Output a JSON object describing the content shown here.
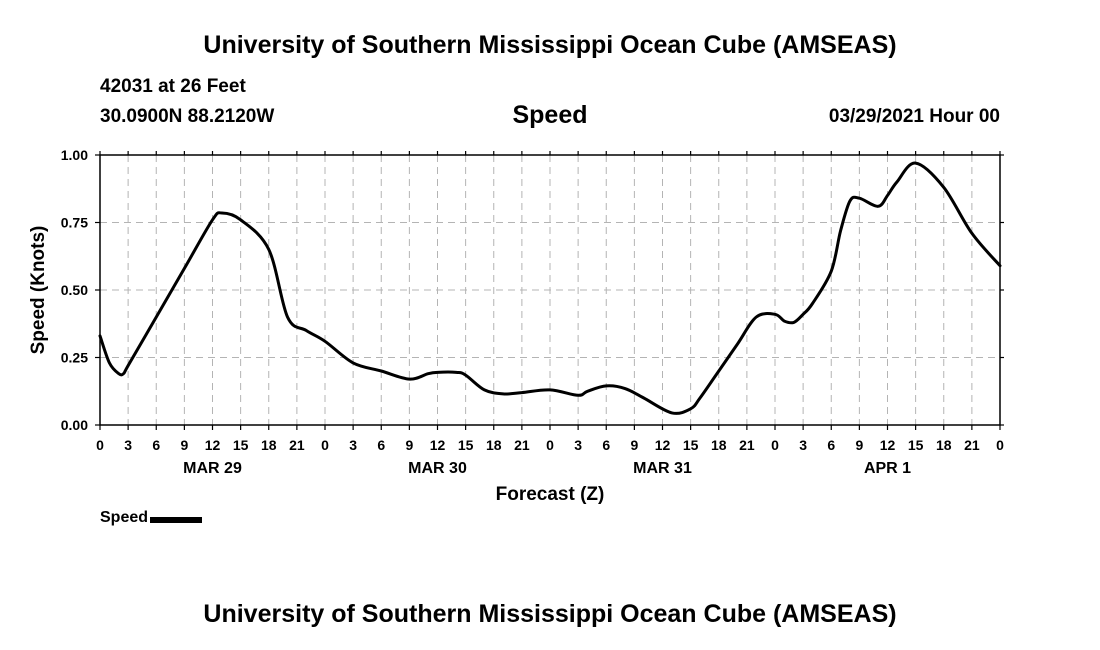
{
  "header": {
    "title": "University of Southern Mississippi Ocean Cube (AMSEAS)",
    "station": "42031 at 26 Feet",
    "coords": "30.0900N  88.2120W",
    "parameter": "Speed",
    "datetime": "03/29/2021 Hour 00"
  },
  "footer": {
    "title": "University of Southern Mississippi Ocean Cube (AMSEAS)"
  },
  "legend": {
    "label": "Speed",
    "color": "#000000"
  },
  "chart_data": {
    "type": "line",
    "title": "Speed",
    "xlabel": "Forecast (Z)",
    "ylabel": "Speed (Knots)",
    "xlim": [
      0,
      96
    ],
    "ylim": [
      0,
      1
    ],
    "grid": true,
    "x_ticks": [
      0,
      3,
      6,
      9,
      12,
      15,
      18,
      21,
      24,
      27,
      30,
      33,
      36,
      39,
      42,
      45,
      48,
      51,
      54,
      57,
      60,
      63,
      66,
      69,
      72,
      75,
      78,
      81,
      84,
      87,
      90,
      93,
      96
    ],
    "x_tick_labels": [
      "0",
      "3",
      "6",
      "9",
      "12",
      "15",
      "18",
      "21",
      "0",
      "3",
      "6",
      "9",
      "12",
      "15",
      "18",
      "21",
      "0",
      "3",
      "6",
      "9",
      "12",
      "15",
      "18",
      "21",
      "0",
      "3",
      "6",
      "9",
      "12",
      "15",
      "18",
      "21",
      "0"
    ],
    "y_ticks": [
      0,
      0.25,
      0.5,
      0.75,
      1.0
    ],
    "y_tick_labels": [
      "0.00",
      "0.25",
      "0.50",
      "0.75",
      "1.00"
    ],
    "day_labels": [
      {
        "x": 12,
        "label": "MAR 29"
      },
      {
        "x": 36,
        "label": "MAR 30"
      },
      {
        "x": 60,
        "label": "MAR 31"
      },
      {
        "x": 84,
        "label": "APR 1"
      }
    ],
    "series": [
      {
        "name": "Speed",
        "color": "#000000",
        "x": [
          0,
          1,
          2,
          2.5,
          3,
          6,
          9,
          12,
          13,
          15,
          18,
          20,
          22,
          24,
          27,
          30,
          33,
          35,
          36,
          38,
          39,
          41,
          43,
          45,
          48,
          51,
          52,
          54,
          56,
          58,
          61,
          63,
          64,
          66,
          68,
          70,
          72,
          73,
          74,
          75,
          76,
          78,
          79,
          80,
          81,
          83,
          84,
          85,
          87,
          90,
          93,
          96
        ],
        "values": [
          0.33,
          0.23,
          0.19,
          0.19,
          0.22,
          0.4,
          0.58,
          0.76,
          0.785,
          0.76,
          0.65,
          0.4,
          0.35,
          0.31,
          0.23,
          0.2,
          0.17,
          0.19,
          0.195,
          0.195,
          0.185,
          0.13,
          0.115,
          0.12,
          0.13,
          0.11,
          0.125,
          0.145,
          0.135,
          0.1,
          0.045,
          0.06,
          0.1,
          0.2,
          0.3,
          0.4,
          0.41,
          0.385,
          0.38,
          0.41,
          0.45,
          0.57,
          0.72,
          0.83,
          0.84,
          0.81,
          0.85,
          0.9,
          0.97,
          0.88,
          0.71,
          0.59
        ]
      }
    ]
  }
}
